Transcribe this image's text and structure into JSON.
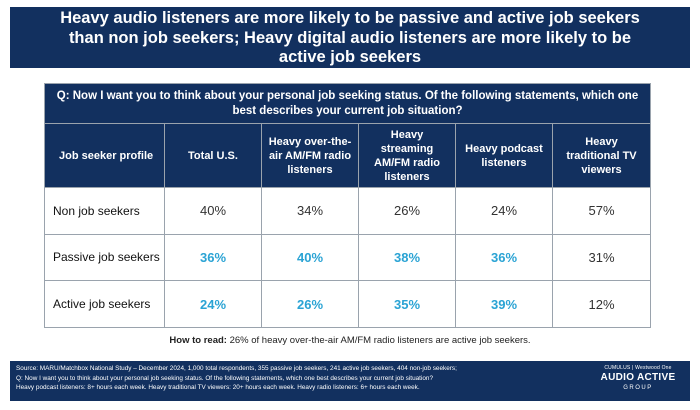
{
  "title": "Heavy audio listeners are more likely to be passive and active job seekers than non job seekers; Heavy digital audio listeners are more likely to be active job seekers",
  "question": "Q: Now I want you to think about your personal job seeking status.  Of the following statements,  which one best describes your current job situation?",
  "colors": {
    "navy": "#12305f",
    "highlight": "#2aa3d4"
  },
  "chart_data": {
    "type": "table",
    "columns": [
      "Job seeker profile",
      "Total U.S.",
      "Heavy over-the-air AM/FM radio listeners",
      "Heavy streaming AM/FM radio listeners",
      "Heavy podcast listeners",
      "Heavy traditional TV viewers"
    ],
    "rows": [
      {
        "label": "Non job seekers",
        "cells": [
          {
            "value": "40%",
            "highlight": false
          },
          {
            "value": "34%",
            "highlight": false
          },
          {
            "value": "26%",
            "highlight": false
          },
          {
            "value": "24%",
            "highlight": false
          },
          {
            "value": "57%",
            "highlight": false
          }
        ]
      },
      {
        "label": "Passive job seekers",
        "cells": [
          {
            "value": "36%",
            "highlight": true
          },
          {
            "value": "40%",
            "highlight": true
          },
          {
            "value": "38%",
            "highlight": true
          },
          {
            "value": "36%",
            "highlight": true
          },
          {
            "value": "31%",
            "highlight": false
          }
        ]
      },
      {
        "label": "Active job seekers",
        "cells": [
          {
            "value": "24%",
            "highlight": true
          },
          {
            "value": "26%",
            "highlight": true
          },
          {
            "value": "35%",
            "highlight": true
          },
          {
            "value": "39%",
            "highlight": true
          },
          {
            "value": "12%",
            "highlight": false
          }
        ]
      }
    ]
  },
  "how_to_read": {
    "label": "How to read:",
    "text": " 26% of heavy over-the-air AM/FM radio listeners are active job seekers."
  },
  "footer": {
    "source_lines": [
      "Source: MARU/Matchbox National Study – December 2024, 1,000 total respondents, 355 passive job seekers, 241 active job seekers, 404 non-job seekers;",
      "Q: Now I want you to think about your personal job seeking status. Of the following statements, which one best describes your current job situation?",
      "Heavy podcast listeners: 8+ hours each week. Heavy traditional TV viewers: 20+ hours each week. Heavy radio listeners: 6+ hours each week."
    ],
    "logo_top": "CUMULUS | Westwood One",
    "logo_main": "AUDIO ACTIVE",
    "logo_sub": "GROUP"
  }
}
